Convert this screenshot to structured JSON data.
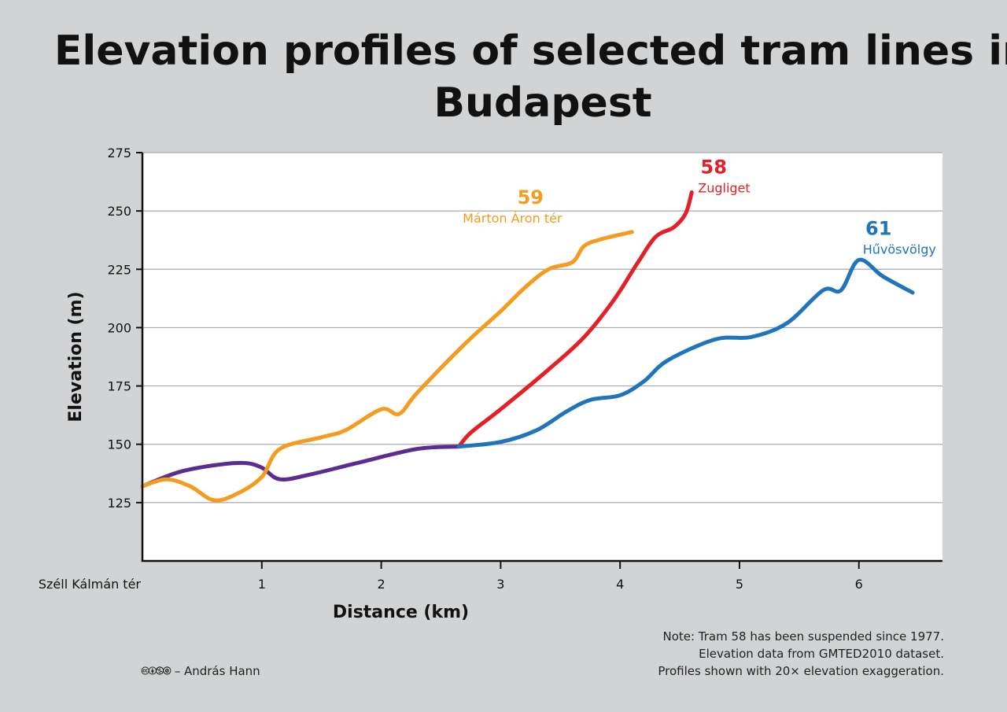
{
  "chart_data": {
    "type": "line",
    "title": "Elevation profiles of selected tram lines in Budapest",
    "xlabel": "Distance (km)",
    "ylabel": "Elevation (m)",
    "xlim": [
      0,
      6.7
    ],
    "ylim": [
      100,
      275
    ],
    "x_ticks": [
      0,
      1,
      2,
      3,
      4,
      5,
      6
    ],
    "x_tick_labels": [
      "Széll Kálmán tér",
      "1",
      "2",
      "3",
      "4",
      "5",
      "6"
    ],
    "y_ticks": [
      125,
      150,
      175,
      200,
      225,
      250,
      275
    ],
    "grid": true,
    "series": [
      {
        "line_number": "",
        "terminus": "",
        "color": "#5c2d91",
        "points": [
          [
            0,
            132
          ],
          [
            0.3,
            138
          ],
          [
            0.6,
            141
          ],
          [
            0.85,
            142
          ],
          [
            1.0,
            140
          ],
          [
            1.15,
            135
          ],
          [
            1.4,
            137
          ],
          [
            1.8,
            142
          ],
          [
            2.3,
            148
          ],
          [
            2.65,
            149
          ]
        ]
      },
      {
        "line_number": "59",
        "terminus": "Márton Áron tér",
        "color": "#f39c1f",
        "points": [
          [
            0,
            132
          ],
          [
            0.2,
            135
          ],
          [
            0.4,
            132
          ],
          [
            0.6,
            126
          ],
          [
            0.8,
            129
          ],
          [
            1.0,
            136
          ],
          [
            1.15,
            148
          ],
          [
            1.5,
            153
          ],
          [
            1.7,
            156
          ],
          [
            2.0,
            165
          ],
          [
            2.15,
            163
          ],
          [
            2.3,
            172
          ],
          [
            2.7,
            193
          ],
          [
            3.0,
            207
          ],
          [
            3.2,
            217
          ],
          [
            3.4,
            225
          ],
          [
            3.6,
            228
          ],
          [
            3.7,
            235
          ],
          [
            3.85,
            238
          ],
          [
            4.1,
            241
          ]
        ]
      },
      {
        "line_number": "58",
        "terminus": "Zugliget",
        "color": "#e32027",
        "points": [
          [
            2.65,
            149
          ],
          [
            2.75,
            155
          ],
          [
            3.0,
            165
          ],
          [
            3.4,
            182
          ],
          [
            3.7,
            196
          ],
          [
            3.95,
            212
          ],
          [
            4.15,
            228
          ],
          [
            4.3,
            239
          ],
          [
            4.45,
            243
          ],
          [
            4.55,
            249
          ],
          [
            4.6,
            258
          ]
        ]
      },
      {
        "line_number": "61",
        "terminus": "Hűvösvölgy",
        "color": "#1f74bb",
        "points": [
          [
            2.65,
            149
          ],
          [
            3.0,
            151
          ],
          [
            3.3,
            156
          ],
          [
            3.55,
            164
          ],
          [
            3.75,
            169
          ],
          [
            4.0,
            171
          ],
          [
            4.2,
            177
          ],
          [
            4.4,
            186
          ],
          [
            4.8,
            195
          ],
          [
            5.1,
            196
          ],
          [
            5.4,
            202
          ],
          [
            5.7,
            216
          ],
          [
            5.85,
            216
          ],
          [
            6.0,
            229
          ],
          [
            6.2,
            222
          ],
          [
            6.45,
            215
          ]
        ]
      }
    ]
  },
  "notes": [
    "Note: Tram 58 has been suspended since 1977.",
    "Elevation data from GMTED2010 dataset.",
    "Profiles shown with 20× elevation exaggeration."
  ],
  "credit": "🅭🅯🄏🄍 – András Hann"
}
